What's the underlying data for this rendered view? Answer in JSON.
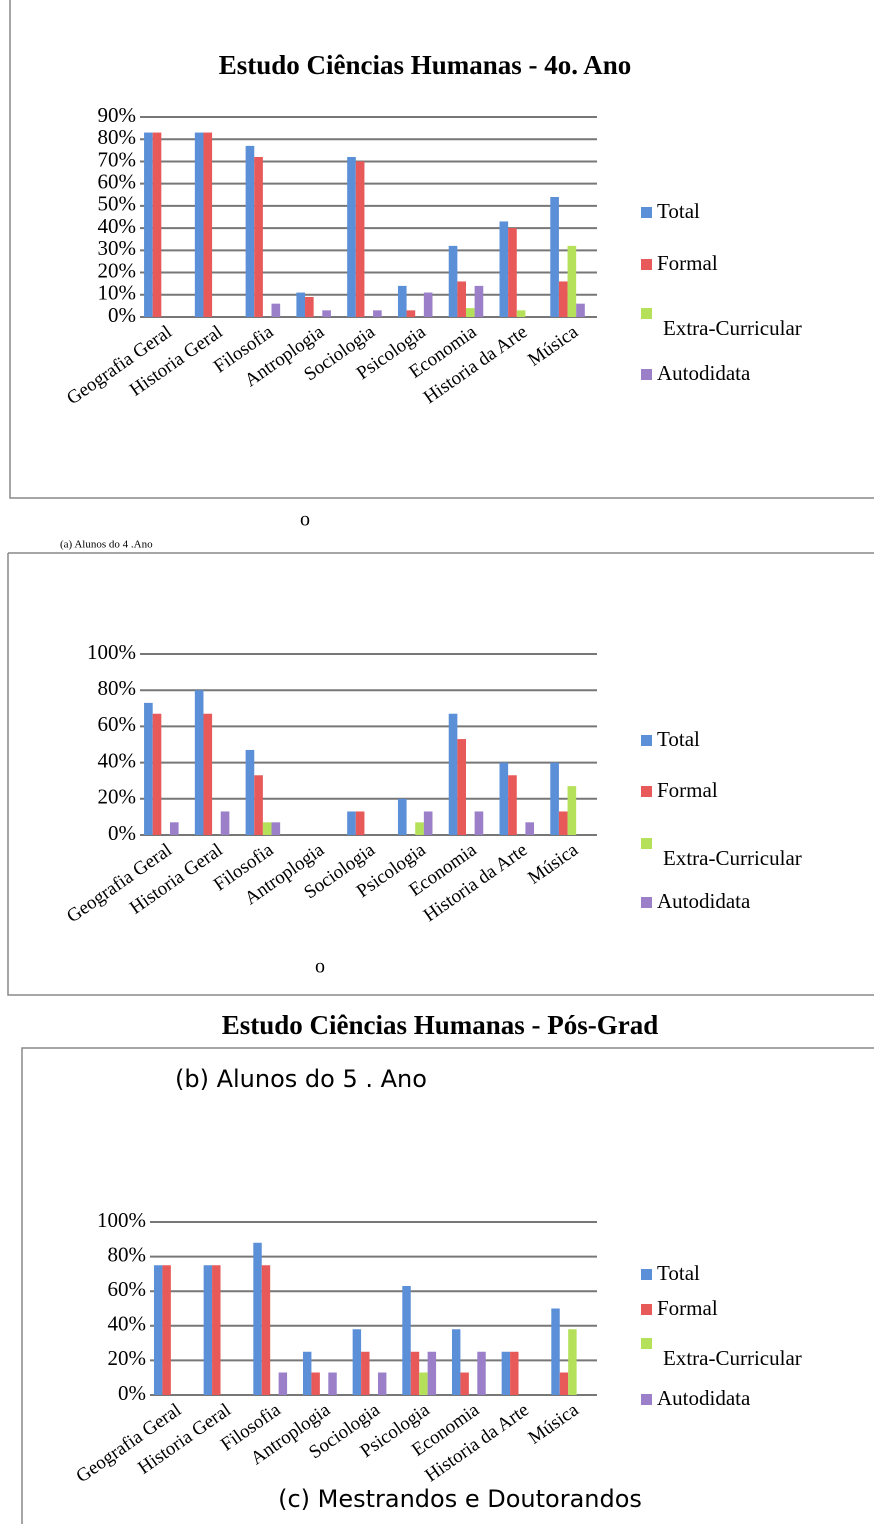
{
  "chart_data": [
    {
      "type": "bar",
      "title": "Estudo Ciências Humanas - 4o. Ano",
      "categories": [
        "Geografia Geral",
        "Historia Geral",
        "Filosofia",
        "Antroplogia",
        "Sociologia",
        "Psicologia",
        "Economia",
        "Historia da Arte",
        "Música"
      ],
      "series": [
        {
          "name": "Total",
          "color": "#5b8fd8",
          "values": [
            83,
            83,
            77,
            11,
            72,
            14,
            32,
            43,
            54
          ]
        },
        {
          "name": "Formal",
          "color": "#e85a5a",
          "values": [
            83,
            83,
            72,
            9,
            70,
            3,
            16,
            40,
            16
          ]
        },
        {
          "name": "Extra-Curricular",
          "color": "#b5e05a",
          "values": [
            0,
            0,
            0,
            0,
            0,
            0,
            4,
            3,
            32
          ]
        },
        {
          "name": "Autodidata",
          "color": "#9b7fc9",
          "values": [
            0,
            0,
            6,
            3,
            3,
            11,
            14,
            0,
            6
          ]
        }
      ],
      "ylim": [
        0,
        90
      ],
      "yticks": [
        {
          "value": 0,
          "label": "0%"
        },
        {
          "value": 10,
          "label": "10%"
        },
        {
          "value": 20,
          "label": "20%"
        },
        {
          "value": 30,
          "label": "30%"
        },
        {
          "value": 40,
          "label": "40%"
        },
        {
          "value": 50,
          "label": "50%"
        },
        {
          "value": 60,
          "label": "60%"
        },
        {
          "value": 70,
          "label": "70%"
        },
        {
          "value": 80,
          "label": "80%"
        },
        {
          "value": 90,
          "label": "90%"
        }
      ],
      "grid": true,
      "legend": "right"
    },
    {
      "type": "bar",
      "categories": [
        "Geografia Geral",
        "Historia Geral",
        "Filosofia",
        "Antroplogia",
        "Sociologia",
        "Psicologia",
        "Economia",
        "Historia da Arte",
        "Música"
      ],
      "series": [
        {
          "name": "Total",
          "color": "#5b8fd8",
          "values": [
            73,
            80,
            47,
            0,
            13,
            20,
            67,
            40,
            40
          ]
        },
        {
          "name": "Formal",
          "color": "#e85a5a",
          "values": [
            67,
            67,
            33,
            0,
            13,
            0,
            53,
            33,
            13
          ]
        },
        {
          "name": "Extra-Curricular",
          "color": "#b5e05a",
          "values": [
            0,
            0,
            7,
            0,
            0,
            7,
            0,
            0,
            27
          ]
        },
        {
          "name": "Autodidata",
          "color": "#9b7fc9",
          "values": [
            7,
            13,
            7,
            0,
            0,
            13,
            13,
            7,
            0
          ]
        }
      ],
      "ylim": [
        0,
        100
      ],
      "yticks": [
        {
          "value": 0,
          "label": "0%"
        },
        {
          "value": 20,
          "label": "20%"
        },
        {
          "value": 40,
          "label": "40%"
        },
        {
          "value": 60,
          "label": "60%"
        },
        {
          "value": 80,
          "label": "80%"
        },
        {
          "value": 100,
          "label": "100%"
        }
      ],
      "grid": true,
      "legend": "right"
    },
    {
      "type": "bar",
      "title": "Estudo Ciências Humanas - Pós-Grad",
      "categories": [
        "Geografia Geral",
        "Historia Geral",
        "Filosofia",
        "Antroplogia",
        "Sociologia",
        "Psicologia",
        "Economia",
        "Historia da Arte",
        "Música"
      ],
      "series": [
        {
          "name": "Total",
          "color": "#5b8fd8",
          "values": [
            75,
            75,
            88,
            25,
            38,
            63,
            38,
            25,
            50
          ]
        },
        {
          "name": "Formal",
          "color": "#e85a5a",
          "values": [
            75,
            75,
            75,
            13,
            25,
            25,
            13,
            25,
            13
          ]
        },
        {
          "name": "Extra-Curricular",
          "color": "#b5e05a",
          "values": [
            0,
            0,
            0,
            0,
            0,
            13,
            0,
            0,
            38
          ]
        },
        {
          "name": "Autodidata",
          "color": "#9b7fc9",
          "values": [
            0,
            0,
            13,
            13,
            13,
            25,
            25,
            0,
            0
          ]
        }
      ],
      "ylim": [
        0,
        100
      ],
      "yticks": [
        {
          "value": 0,
          "label": "0%"
        },
        {
          "value": 20,
          "label": "20%"
        },
        {
          "value": 40,
          "label": "40%"
        },
        {
          "value": 60,
          "label": "60%"
        },
        {
          "value": 80,
          "label": "80%"
        },
        {
          "value": 100,
          "label": "100%"
        }
      ],
      "grid": true,
      "legend": "right"
    }
  ],
  "captions": [
    "(a) Alunos do 4 .Ano",
    "o",
    "(b) Alunos do 5 . Ano",
    "o",
    "(c) Mestrandos e Doutorandos"
  ]
}
